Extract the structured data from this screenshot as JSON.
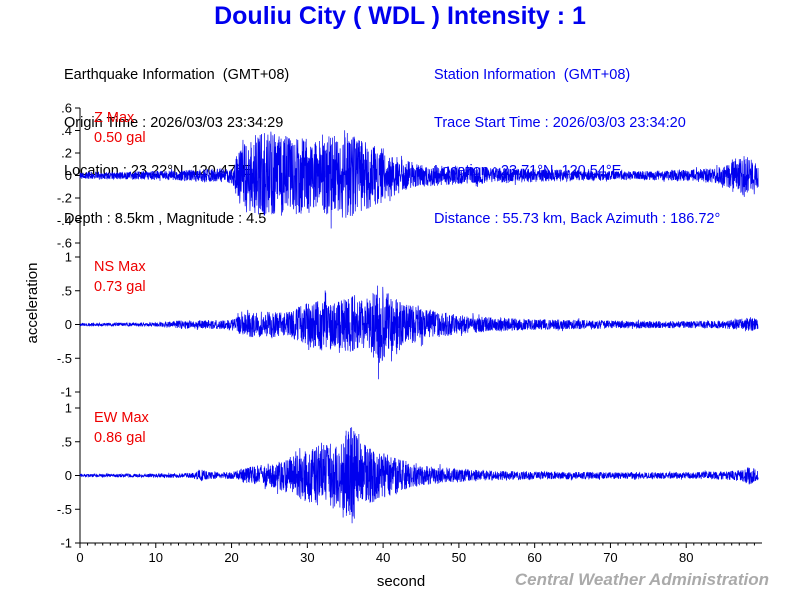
{
  "header": {
    "title": "Douliu City ( WDL ) Intensity : 1",
    "earthquake": {
      "heading": "Earthquake Information  (GMT+08)",
      "origin_time": "Origin Time : 2026/03/03 23:34:29",
      "location": "Location : 23.22°N, 120.47°E",
      "depth_magnitude": "Depth : 8.5km , Magnitude : 4.5"
    },
    "station": {
      "heading": "Station Information  (GMT+08)",
      "trace_start": "Trace Start Time : 2026/03/03 23:34:20",
      "location": "Location : 23.71°N, 120.54°E",
      "distance": "Distance : 55.73 km, Back Azimuth : 186.72°"
    }
  },
  "chart_data": {
    "type": "line",
    "xlabel": "second",
    "ylabel": "acceleration",
    "xlim": [
      0,
      90
    ],
    "xticks": [
      0,
      10,
      20,
      30,
      40,
      50,
      60,
      70,
      80
    ],
    "line_color": "#0000ee",
    "label_color": "#ee0000",
    "panels": [
      {
        "channel": "Z",
        "max_label": "Z Max",
        "max_value": "0.50 gal",
        "ylim": [
          -0.6,
          0.6
        ],
        "yticks": [
          -0.6,
          -0.4,
          -0.2,
          0,
          0.2,
          0.4,
          0.6
        ],
        "envelope": {
          "t": [
            0,
            5,
            10,
            15,
            20,
            20.8,
            21.5,
            23,
            25,
            27,
            29,
            31,
            33,
            35,
            36,
            38,
            40,
            42,
            45,
            50,
            55,
            60,
            65,
            70,
            75,
            80,
            84,
            86,
            87.5,
            88.5,
            89.5
          ],
          "amp": [
            0.03,
            0.035,
            0.04,
            0.05,
            0.07,
            0.2,
            0.32,
            0.36,
            0.4,
            0.36,
            0.34,
            0.33,
            0.35,
            0.38,
            0.36,
            0.3,
            0.24,
            0.16,
            0.1,
            0.08,
            0.07,
            0.06,
            0.05,
            0.04,
            0.04,
            0.05,
            0.07,
            0.12,
            0.2,
            0.15,
            0.1
          ]
        }
      },
      {
        "channel": "NS",
        "max_label": "NS Max",
        "max_value": "0.73 gal",
        "ylim": [
          -1,
          1
        ],
        "yticks": [
          -1,
          -0.5,
          0,
          0.5,
          1
        ],
        "envelope": {
          "t": [
            0,
            10,
            13,
            20,
            21,
            23,
            27,
            30,
            32,
            34,
            36,
            38,
            39.5,
            41,
            43,
            47,
            50,
            55,
            60,
            65,
            70,
            80,
            85,
            87,
            88.5,
            89.5
          ],
          "amp": [
            0.02,
            0.03,
            0.06,
            0.07,
            0.14,
            0.2,
            0.18,
            0.32,
            0.42,
            0.35,
            0.45,
            0.38,
            0.62,
            0.42,
            0.3,
            0.2,
            0.14,
            0.1,
            0.08,
            0.07,
            0.06,
            0.05,
            0.06,
            0.08,
            0.11,
            0.07
          ]
        }
      },
      {
        "channel": "EW",
        "max_label": "EW Max",
        "max_value": "0.86 gal",
        "ylim": [
          -1,
          1
        ],
        "yticks": [
          -1,
          -0.5,
          0,
          0.5,
          1
        ],
        "envelope": {
          "t": [
            0,
            10,
            15,
            16,
            17,
            20,
            22,
            25,
            28,
            30,
            32,
            34,
            35.5,
            37,
            39,
            42,
            45,
            50,
            55,
            60,
            70,
            80,
            85,
            87,
            88.5,
            89.5
          ],
          "amp": [
            0.02,
            0.03,
            0.04,
            0.09,
            0.05,
            0.05,
            0.12,
            0.18,
            0.3,
            0.4,
            0.46,
            0.5,
            0.78,
            0.52,
            0.38,
            0.25,
            0.15,
            0.1,
            0.07,
            0.06,
            0.05,
            0.05,
            0.06,
            0.08,
            0.14,
            0.07
          ]
        }
      }
    ]
  },
  "footer": {
    "credit": "Central Weather Administration"
  }
}
